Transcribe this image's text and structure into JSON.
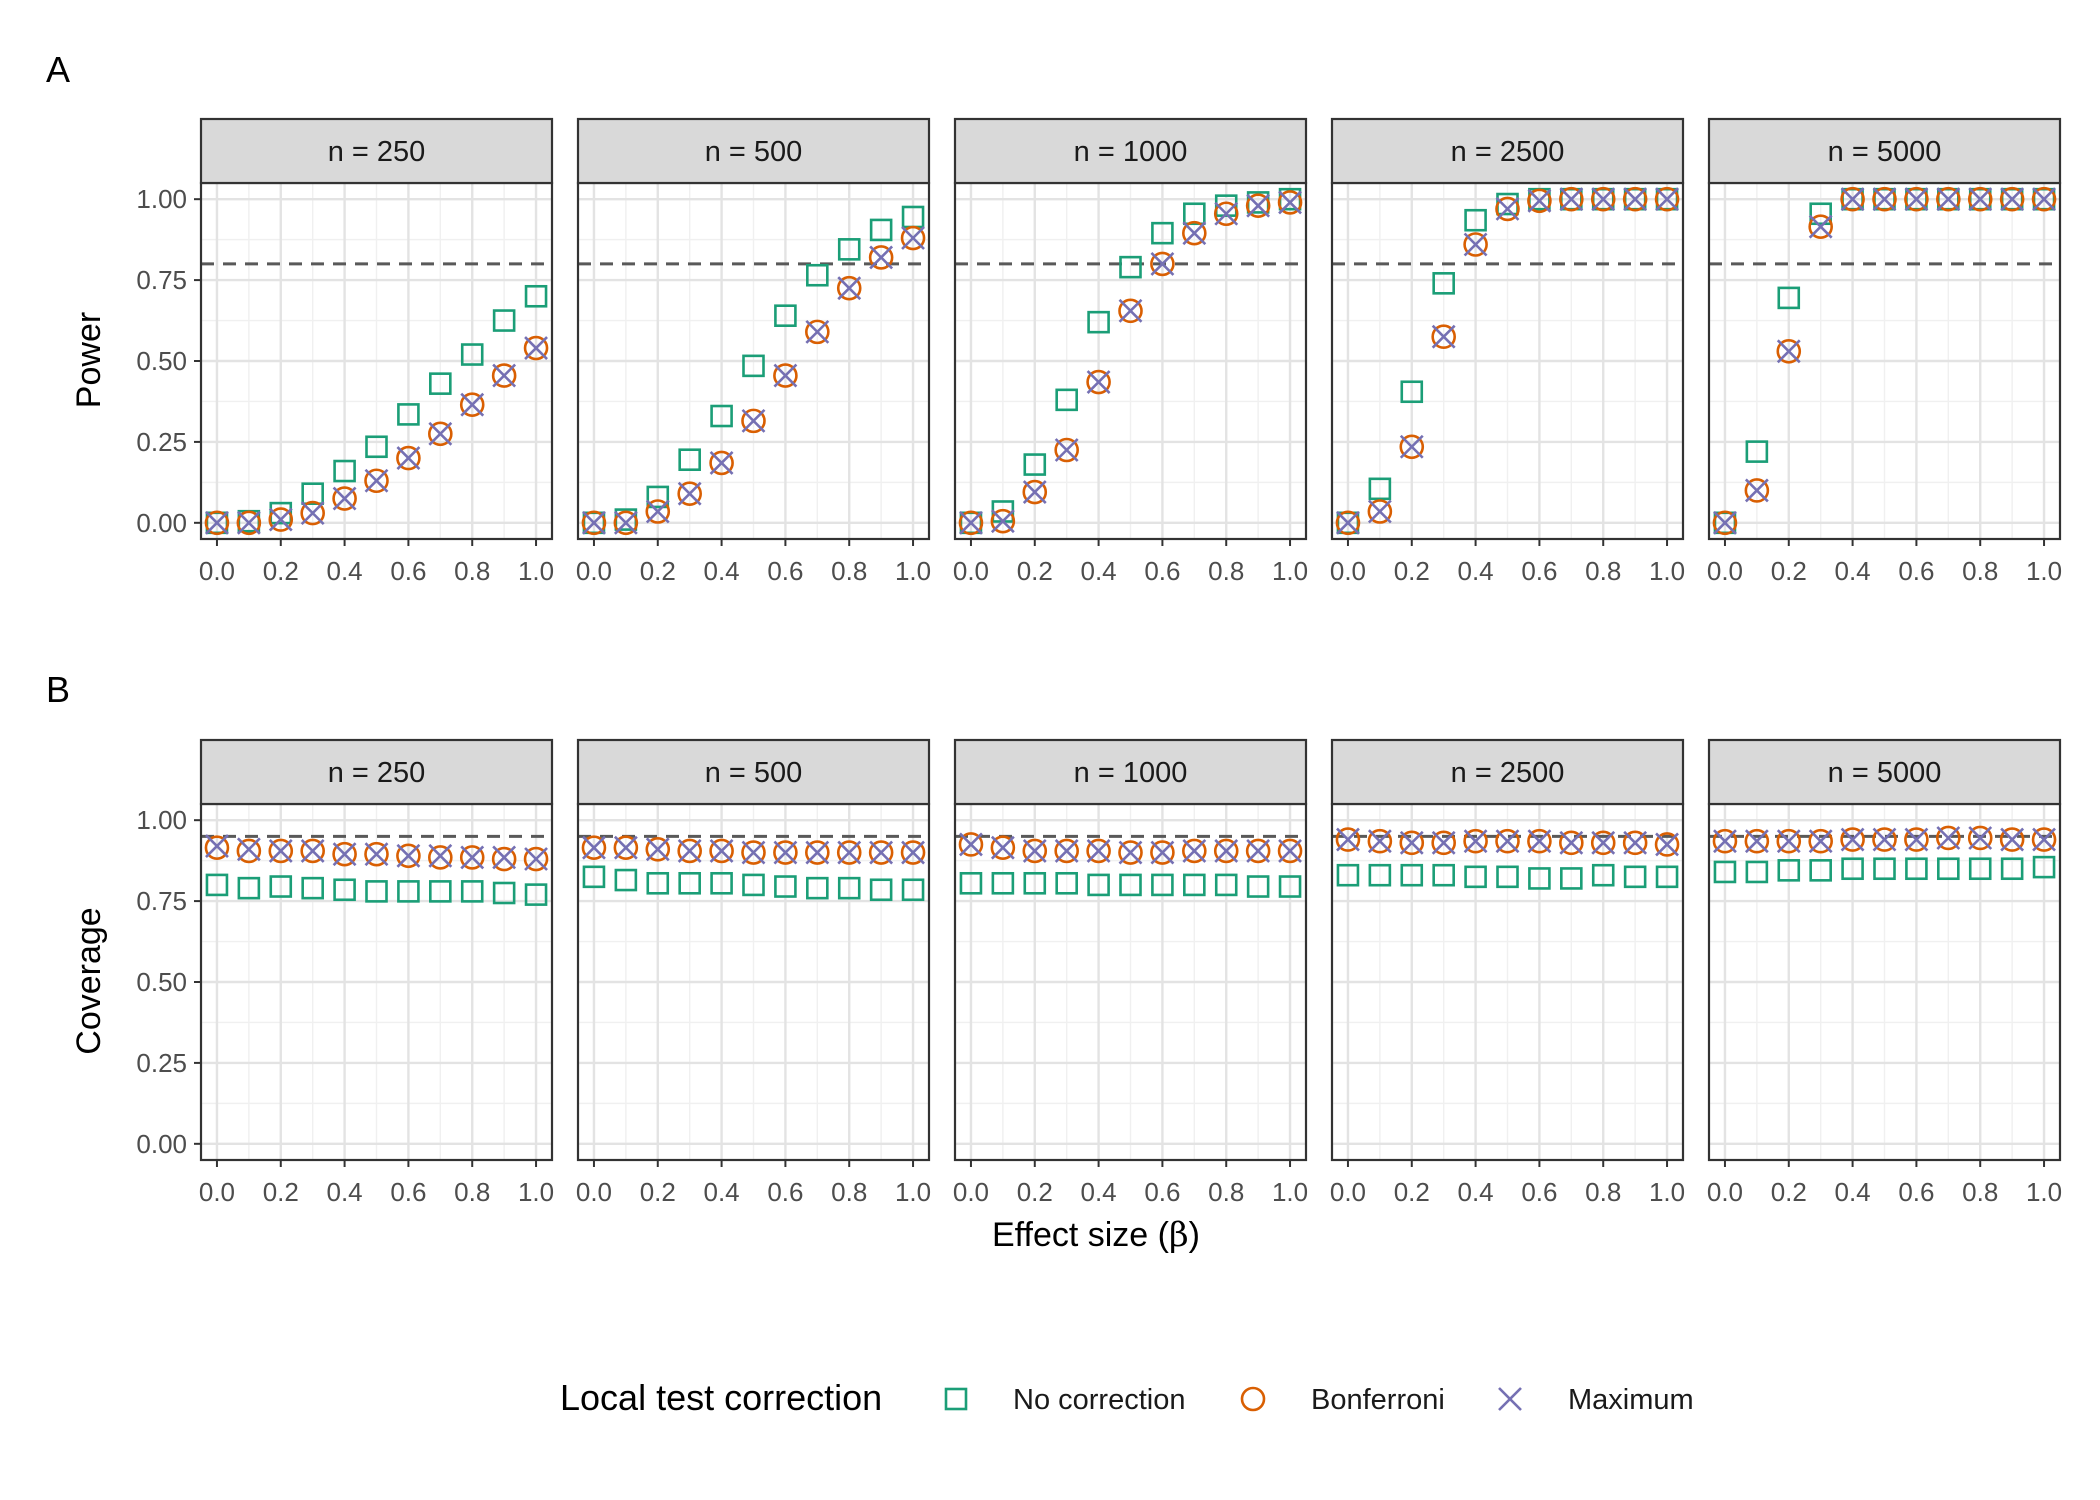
{
  "figure": {
    "x_axis_title_prefix": "Effect size (",
    "x_axis_title_symbol": "β",
    "x_axis_title_suffix": ")"
  },
  "legend": {
    "title": "Local test correction",
    "items": [
      {
        "label": "No correction",
        "shape": "square",
        "color": "#1b9e77"
      },
      {
        "label": "Bonferroni",
        "shape": "circle",
        "color": "#d95f02"
      },
      {
        "label": "Maximum",
        "shape": "cross",
        "color": "#7570b3"
      }
    ]
  },
  "chart_data": [
    {
      "type": "scatter",
      "tag": "A",
      "ylabel": "Power",
      "ylim": [
        -0.05,
        1.05
      ],
      "yticks": [
        "0.00",
        "0.25",
        "0.50",
        "0.75",
        "1.00"
      ],
      "xlim": [
        -0.05,
        1.05
      ],
      "xticks": [
        "0.0",
        "0.2",
        "0.4",
        "0.6",
        "0.8",
        "1.0"
      ],
      "reference_line": 0.8,
      "x": [
        0.0,
        0.1,
        0.2,
        0.3,
        0.4,
        0.5,
        0.6,
        0.7,
        0.8,
        0.9,
        1.0
      ],
      "facets": [
        {
          "label": "n = 250",
          "series": [
            {
              "name": "No correction",
              "values": [
                0.0,
                0.005,
                0.03,
                0.09,
                0.16,
                0.235,
                0.335,
                0.43,
                0.52,
                0.625,
                0.7
              ]
            },
            {
              "name": "Bonferroni",
              "values": [
                0.0,
                0.0,
                0.01,
                0.03,
                0.075,
                0.13,
                0.2,
                0.275,
                0.365,
                0.455,
                0.54
              ]
            },
            {
              "name": "Maximum",
              "values": [
                0.0,
                0.0,
                0.01,
                0.03,
                0.075,
                0.13,
                0.2,
                0.275,
                0.365,
                0.455,
                0.54
              ]
            }
          ]
        },
        {
          "label": "n = 500",
          "series": [
            {
              "name": "No correction",
              "values": [
                0.0,
                0.01,
                0.08,
                0.195,
                0.33,
                0.485,
                0.64,
                0.765,
                0.845,
                0.905,
                0.945
              ]
            },
            {
              "name": "Bonferroni",
              "values": [
                0.0,
                0.0,
                0.035,
                0.09,
                0.185,
                0.315,
                0.455,
                0.59,
                0.725,
                0.82,
                0.88
              ]
            },
            {
              "name": "Maximum",
              "values": [
                0.0,
                0.0,
                0.035,
                0.09,
                0.185,
                0.315,
                0.455,
                0.59,
                0.725,
                0.82,
                0.88
              ]
            }
          ]
        },
        {
          "label": "n = 1000",
          "series": [
            {
              "name": "No correction",
              "values": [
                0.0,
                0.035,
                0.18,
                0.38,
                0.62,
                0.79,
                0.895,
                0.955,
                0.98,
                0.99,
                1.0
              ]
            },
            {
              "name": "Bonferroni",
              "values": [
                0.0,
                0.005,
                0.095,
                0.225,
                0.435,
                0.655,
                0.8,
                0.895,
                0.955,
                0.98,
                0.99
              ]
            },
            {
              "name": "Maximum",
              "values": [
                0.0,
                0.005,
                0.095,
                0.225,
                0.435,
                0.655,
                0.8,
                0.895,
                0.955,
                0.98,
                0.99
              ]
            }
          ]
        },
        {
          "label": "n = 2500",
          "series": [
            {
              "name": "No correction",
              "values": [
                0.0,
                0.105,
                0.405,
                0.74,
                0.935,
                0.985,
                1.0,
                1.0,
                1.0,
                1.0,
                1.0
              ]
            },
            {
              "name": "Bonferroni",
              "values": [
                0.0,
                0.035,
                0.235,
                0.575,
                0.86,
                0.97,
                0.995,
                1.0,
                1.0,
                1.0,
                1.0
              ]
            },
            {
              "name": "Maximum",
              "values": [
                0.0,
                0.035,
                0.235,
                0.575,
                0.86,
                0.97,
                0.995,
                1.0,
                1.0,
                1.0,
                1.0
              ]
            }
          ]
        },
        {
          "label": "n = 5000",
          "series": [
            {
              "name": "No correction",
              "values": [
                0.0,
                0.22,
                0.695,
                0.955,
                1.0,
                1.0,
                1.0,
                1.0,
                1.0,
                1.0,
                1.0
              ]
            },
            {
              "name": "Bonferroni",
              "values": [
                0.0,
                0.1,
                0.53,
                0.915,
                1.0,
                1.0,
                1.0,
                1.0,
                1.0,
                1.0,
                1.0
              ]
            },
            {
              "name": "Maximum",
              "values": [
                0.0,
                0.1,
                0.53,
                0.915,
                1.0,
                1.0,
                1.0,
                1.0,
                1.0,
                1.0,
                1.0
              ]
            }
          ]
        }
      ]
    },
    {
      "type": "scatter",
      "tag": "B",
      "ylabel": "Coverage",
      "ylim": [
        -0.05,
        1.05
      ],
      "yticks": [
        "0.00",
        "0.25",
        "0.50",
        "0.75",
        "1.00"
      ],
      "xlim": [
        -0.05,
        1.05
      ],
      "xticks": [
        "0.0",
        "0.2",
        "0.4",
        "0.6",
        "0.8",
        "1.0"
      ],
      "reference_line": 0.95,
      "x": [
        0.0,
        0.1,
        0.2,
        0.3,
        0.4,
        0.5,
        0.6,
        0.7,
        0.8,
        0.9,
        1.0
      ],
      "facets": [
        {
          "label": "n = 250",
          "series": [
            {
              "name": "No correction",
              "values": [
                0.8,
                0.79,
                0.795,
                0.79,
                0.785,
                0.78,
                0.78,
                0.78,
                0.78,
                0.775,
                0.77
              ]
            },
            {
              "name": "Bonferroni",
              "values": [
                0.915,
                0.905,
                0.905,
                0.905,
                0.895,
                0.895,
                0.89,
                0.885,
                0.885,
                0.88,
                0.88
              ]
            },
            {
              "name": "Maximum",
              "values": [
                0.92,
                0.91,
                0.905,
                0.905,
                0.895,
                0.895,
                0.89,
                0.89,
                0.885,
                0.885,
                0.88
              ]
            }
          ]
        },
        {
          "label": "n = 500",
          "series": [
            {
              "name": "No correction",
              "values": [
                0.825,
                0.815,
                0.805,
                0.805,
                0.805,
                0.8,
                0.795,
                0.79,
                0.79,
                0.785,
                0.785
              ]
            },
            {
              "name": "Bonferroni",
              "values": [
                0.915,
                0.915,
                0.91,
                0.905,
                0.905,
                0.9,
                0.9,
                0.9,
                0.9,
                0.9,
                0.9
              ]
            },
            {
              "name": "Maximum",
              "values": [
                0.915,
                0.915,
                0.91,
                0.905,
                0.905,
                0.9,
                0.9,
                0.9,
                0.9,
                0.9,
                0.9
              ]
            }
          ]
        },
        {
          "label": "n = 1000",
          "series": [
            {
              "name": "No correction",
              "values": [
                0.805,
                0.805,
                0.805,
                0.805,
                0.8,
                0.8,
                0.8,
                0.8,
                0.8,
                0.795,
                0.795
              ]
            },
            {
              "name": "Bonferroni",
              "values": [
                0.925,
                0.915,
                0.905,
                0.905,
                0.905,
                0.9,
                0.9,
                0.905,
                0.905,
                0.905,
                0.905
              ]
            },
            {
              "name": "Maximum",
              "values": [
                0.925,
                0.915,
                0.905,
                0.905,
                0.905,
                0.9,
                0.9,
                0.905,
                0.905,
                0.905,
                0.905
              ]
            }
          ]
        },
        {
          "label": "n = 2500",
          "series": [
            {
              "name": "No correction",
              "values": [
                0.83,
                0.83,
                0.83,
                0.83,
                0.825,
                0.825,
                0.82,
                0.82,
                0.83,
                0.825,
                0.825
              ]
            },
            {
              "name": "Bonferroni",
              "values": [
                0.94,
                0.935,
                0.93,
                0.93,
                0.935,
                0.935,
                0.935,
                0.93,
                0.93,
                0.93,
                0.925
              ]
            },
            {
              "name": "Maximum",
              "values": [
                0.94,
                0.935,
                0.93,
                0.93,
                0.935,
                0.935,
                0.935,
                0.93,
                0.93,
                0.93,
                0.925
              ]
            }
          ]
        },
        {
          "label": "n = 5000",
          "series": [
            {
              "name": "No correction",
              "values": [
                0.84,
                0.84,
                0.845,
                0.845,
                0.85,
                0.85,
                0.85,
                0.85,
                0.85,
                0.85,
                0.855
              ]
            },
            {
              "name": "Bonferroni",
              "values": [
                0.935,
                0.935,
                0.935,
                0.935,
                0.94,
                0.94,
                0.94,
                0.945,
                0.945,
                0.94,
                0.94
              ]
            },
            {
              "name": "Maximum",
              "values": [
                0.935,
                0.935,
                0.935,
                0.935,
                0.94,
                0.94,
                0.94,
                0.945,
                0.945,
                0.94,
                0.94
              ]
            }
          ]
        }
      ]
    }
  ]
}
